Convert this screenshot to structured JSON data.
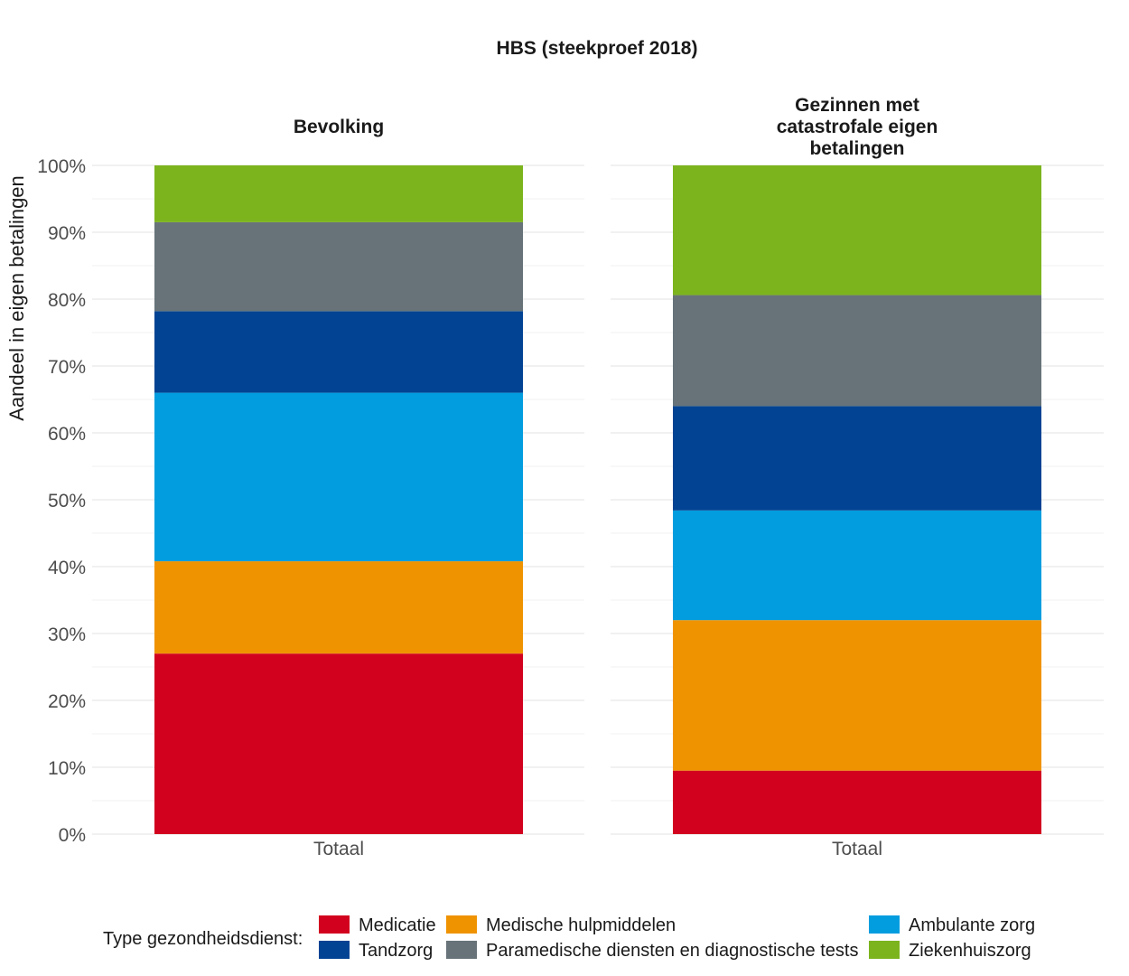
{
  "chart_data": {
    "type": "bar",
    "stacked": true,
    "title": "HBS (steekproef 2018)",
    "ylabel": "Aandeel in eigen betalingen",
    "xlabel": "",
    "ylim": [
      0,
      100
    ],
    "y_ticks": [
      "0%",
      "10%",
      "20%",
      "30%",
      "40%",
      "50%",
      "60%",
      "70%",
      "80%",
      "90%",
      "100%"
    ],
    "categories": [
      "Totaal"
    ],
    "panels": [
      {
        "title": "Bevolking",
        "category": "Totaal",
        "segments": [
          {
            "name": "Medicatie",
            "value": 27.0
          },
          {
            "name": "Medische hulpmiddelen",
            "value": 13.8
          },
          {
            "name": "Ambulante zorg",
            "value": 25.2
          },
          {
            "name": "Tandzorg",
            "value": 12.2
          },
          {
            "name": "Paramedische diensten en diagnostische tests",
            "value": 13.3
          },
          {
            "name": "Ziekenhuiszorg",
            "value": 8.5
          }
        ]
      },
      {
        "title": "Gezinnen met catastrofale eigen betalingen",
        "title_lines": [
          "Gezinnen met",
          "catastrofale eigen",
          "betalingen"
        ],
        "category": "Totaal",
        "segments": [
          {
            "name": "Medicatie",
            "value": 9.5
          },
          {
            "name": "Medische hulpmiddelen",
            "value": 22.5
          },
          {
            "name": "Ambulante zorg",
            "value": 16.4
          },
          {
            "name": "Tandzorg",
            "value": 15.6
          },
          {
            "name": "Paramedische diensten en diagnostische tests",
            "value": 16.6
          },
          {
            "name": "Ziekenhuiszorg",
            "value": 19.4
          }
        ]
      }
    ],
    "legend": {
      "title": "Type gezondheidsdienst:",
      "position": "bottom",
      "items": [
        {
          "name": "Medicatie",
          "color": "#d2021f"
        },
        {
          "name": "Medische hulpmiddelen",
          "color": "#f09300"
        },
        {
          "name": "Ambulante zorg",
          "color": "#029ddf"
        },
        {
          "name": "Tandzorg",
          "color": "#024393"
        },
        {
          "name": "Paramedische diensten en diagnostische tests",
          "color": "#677379"
        },
        {
          "name": "Ziekenhuiszorg",
          "color": "#7cb41e"
        }
      ]
    }
  }
}
